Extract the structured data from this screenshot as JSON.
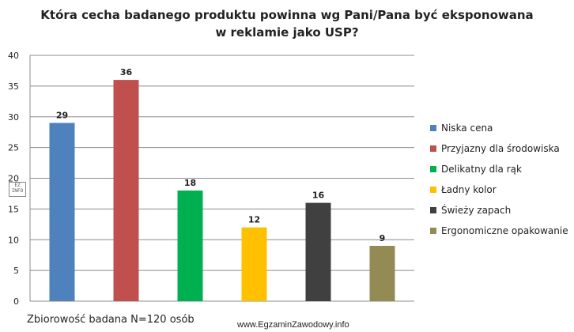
{
  "chart_data": {
    "type": "bar",
    "title_line1": "Która cecha badanego produktu powinna  wg Pani/Pana być eksponowana",
    "title_line2": "w reklamie jako USP?",
    "categories": [
      "Niska cena",
      "Przyjazny dla środowiska",
      "Delikatny dla rąk",
      "Ładny kolor",
      "Świeży zapach",
      "Ergonomiczne opakowanie"
    ],
    "values": [
      29,
      36,
      18,
      12,
      16,
      9
    ],
    "colors": [
      "#4f81bd",
      "#c0504d",
      "#00b050",
      "#ffc000",
      "#404040",
      "#948a54"
    ],
    "ylim": [
      0,
      40
    ],
    "yticks": [
      0,
      5,
      10,
      15,
      20,
      25,
      30,
      35,
      40
    ],
    "grid": true,
    "legend_position": "right",
    "xlabel": "",
    "ylabel": ""
  },
  "caption": "Zbiorowość badana N=120 osób",
  "credit": "www.EgzaminZawodowy.info",
  "stamp_text": "EZ INFO"
}
